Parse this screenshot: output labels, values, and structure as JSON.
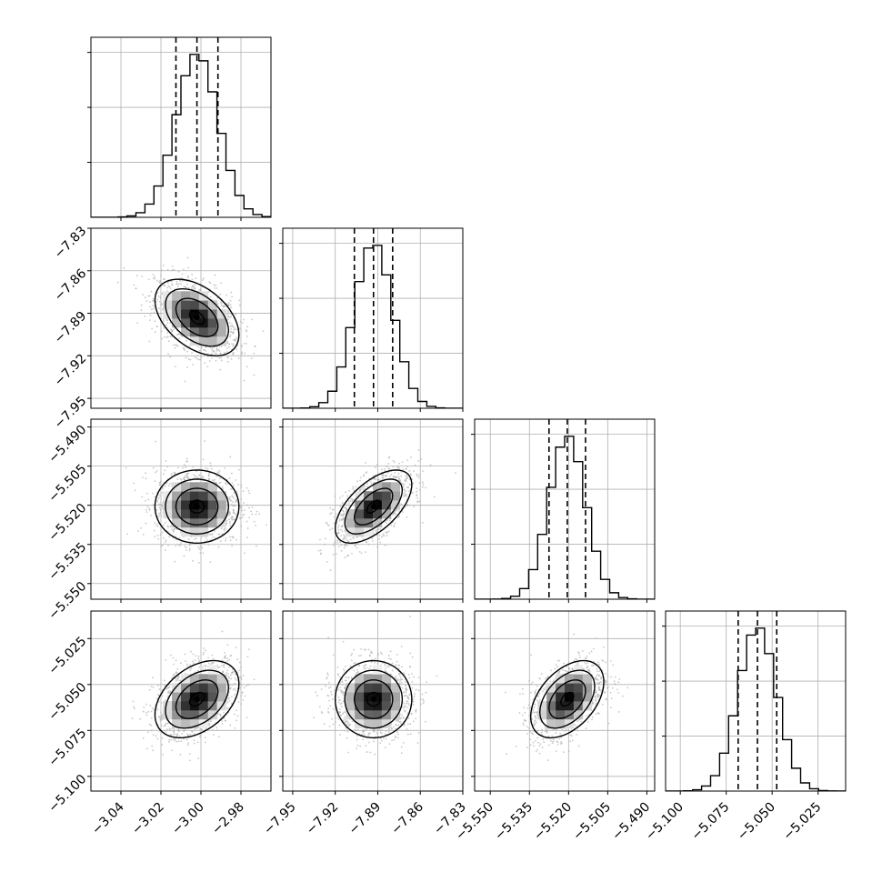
{
  "chart_data": {
    "type": "corner",
    "params": [
      {
        "range": [
          -3.055,
          -2.965
        ],
        "ticks": [
          "−3.04",
          "−3.02",
          "−3.00",
          "−2.98"
        ],
        "tick_values": [
          -3.04,
          -3.02,
          -3.0,
          -2.98
        ],
        "mean": -3.002,
        "sigma": 0.0105,
        "quantiles": [
          -3.0125,
          -3.002,
          -2.9915
        ]
      },
      {
        "range": [
          -7.957,
          -7.83
        ],
        "ticks": [
          "−7.95",
          "−7.92",
          "−7.89",
          "−7.86",
          "−7.83"
        ],
        "tick_values": [
          -7.95,
          -7.92,
          -7.89,
          -7.86,
          -7.83
        ],
        "mean": -7.893,
        "sigma": 0.0135,
        "quantiles": [
          -7.9065,
          -7.893,
          -7.8795
        ]
      },
      {
        "range": [
          -5.556,
          -5.487
        ],
        "ticks": [
          "−5.550",
          "−5.535",
          "−5.520",
          "−5.505",
          "−5.490"
        ],
        "tick_values": [
          -5.55,
          -5.535,
          -5.52,
          -5.505,
          -5.49
        ],
        "mean": -5.5205,
        "sigma": 0.007,
        "quantiles": [
          -5.5275,
          -5.5205,
          -5.5135
        ]
      },
      {
        "range": [
          -5.108,
          -5.01
        ],
        "ticks": [
          "−5.100",
          "−5.075",
          "−5.050",
          "−5.025"
        ],
        "tick_values": [
          -5.1,
          -5.075,
          -5.05,
          -5.025
        ],
        "mean": -5.058,
        "sigma": 0.0105,
        "quantiles": [
          -5.0685,
          -5.058,
          -5.0475
        ]
      }
    ],
    "correlations": [
      [
        1,
        2,
        -0.45
      ],
      [
        1,
        3,
        0.0
      ],
      [
        2,
        3,
        0.6
      ],
      [
        1,
        4,
        0.4
      ],
      [
        2,
        4,
        0.0
      ],
      [
        3,
        4,
        0.45
      ]
    ],
    "histogram": {
      "bins": 20,
      "style": "step",
      "quantile_lines": "dashed"
    },
    "scatter": {
      "color": "#b0b0b0"
    },
    "contours": {
      "levels": 4,
      "color": "#000000"
    },
    "grid": true
  }
}
